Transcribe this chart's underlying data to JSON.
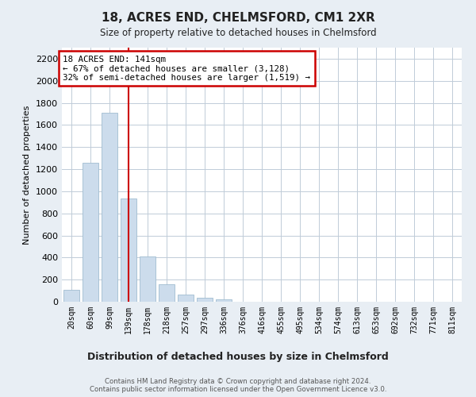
{
  "title": "18, ACRES END, CHELMSFORD, CM1 2XR",
  "subtitle": "Size of property relative to detached houses in Chelmsford",
  "xlabel": "Distribution of detached houses by size in Chelmsford",
  "ylabel": "Number of detached properties",
  "categories": [
    "20sqm",
    "60sqm",
    "99sqm",
    "139sqm",
    "178sqm",
    "218sqm",
    "257sqm",
    "297sqm",
    "336sqm",
    "376sqm",
    "416sqm",
    "455sqm",
    "495sqm",
    "534sqm",
    "574sqm",
    "613sqm",
    "653sqm",
    "692sqm",
    "732sqm",
    "771sqm",
    "811sqm"
  ],
  "values": [
    110,
    1260,
    1710,
    935,
    410,
    155,
    62,
    35,
    22,
    0,
    0,
    0,
    0,
    0,
    0,
    0,
    0,
    0,
    0,
    0,
    0
  ],
  "bar_color": "#ccdcec",
  "bar_edge_color": "#a0bcd0",
  "vline_x": 3.0,
  "vline_color": "#cc0000",
  "annotation_text": "18 ACRES END: 141sqm\n← 67% of detached houses are smaller (3,128)\n32% of semi-detached houses are larger (1,519) →",
  "annotation_box_color": "#cc0000",
  "ylim": [
    0,
    2300
  ],
  "yticks": [
    0,
    200,
    400,
    600,
    800,
    1000,
    1200,
    1400,
    1600,
    1800,
    2000,
    2200
  ],
  "footnote": "Contains HM Land Registry data © Crown copyright and database right 2024.\nContains public sector information licensed under the Open Government Licence v3.0.",
  "bg_color": "#e8eef4",
  "plot_bg_color": "#ffffff",
  "grid_color": "#c0ccd8"
}
